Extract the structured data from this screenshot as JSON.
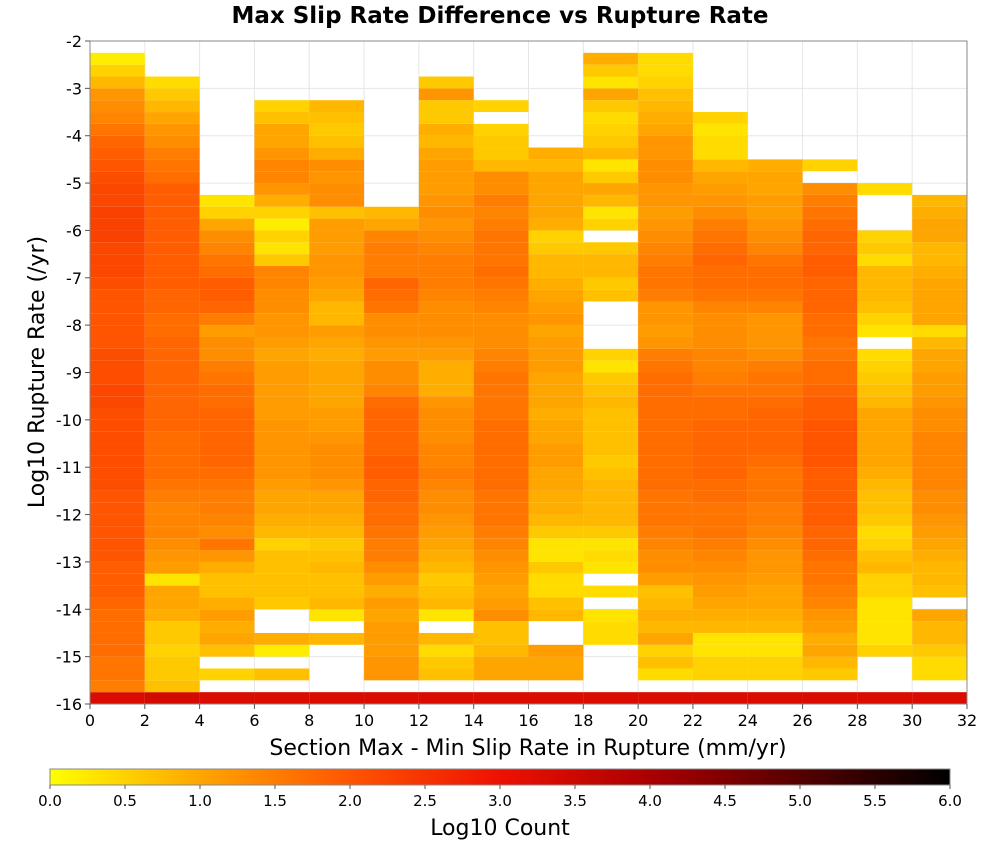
{
  "chart_data": {
    "type": "heatmap",
    "title": "Max Slip Rate Difference vs Rupture Rate",
    "xlabel": "Section Max - Min Slip Rate in Rupture (mm/yr)",
    "ylabel": "Log10 Rupture Rate (/yr)",
    "xlim": [
      0,
      32
    ],
    "ylim": [
      -16,
      -2
    ],
    "x_ticks": [
      "0",
      "2",
      "4",
      "6",
      "8",
      "10",
      "12",
      "14",
      "16",
      "18",
      "20",
      "22",
      "24",
      "26",
      "28",
      "30",
      "32"
    ],
    "y_ticks": [
      "-2",
      "-3",
      "-4",
      "-5",
      "-6",
      "-7",
      "-8",
      "-9",
      "-10",
      "-11",
      "-12",
      "-13",
      "-14",
      "-15",
      "-16"
    ],
    "bin_width_x": 2,
    "bin_height_y": 0.25,
    "y_bin_start": -16,
    "grid": true,
    "colorbar": {
      "label": "Log10 Count",
      "min": 0,
      "max": 6,
      "ticks": [
        "0.0",
        "0.5",
        "1.0",
        "1.5",
        "2.0",
        "2.5",
        "3.0",
        "3.5",
        "4.0",
        "4.5",
        "5.0",
        "5.5",
        "6.0"
      ],
      "colors": [
        "#FFFF00",
        "#FFA500",
        "#FF5500",
        "#EE1100",
        "#AA0000",
        "#550000",
        "#000000"
      ]
    },
    "columns": [
      {
        "x_start": 0,
        "base": 3.3,
        "values": [
          1.5,
          1.6,
          1.6,
          1.7,
          1.7,
          1.7,
          1.7,
          1.8,
          1.9,
          1.9,
          1.9,
          2.0,
          2.0,
          2.0,
          2.0,
          2.0,
          2.0,
          2.1,
          2.1,
          2.1,
          2.1,
          2.1,
          2.1,
          2.1,
          2.2,
          2.2,
          2.1,
          2.1,
          2.1,
          2.0,
          2.0,
          2.0,
          2.0,
          2.0,
          2.1,
          2.2,
          2.2,
          2.2,
          2.3,
          2.3,
          2.3,
          2.2,
          2.2,
          2.1,
          2.0,
          1.9,
          1.8,
          1.6,
          1.4,
          1.3,
          1.2,
          0.8,
          0.5,
          0.2
        ]
      },
      {
        "x_start": 2,
        "base": 3.4,
        "values": [
          0.7,
          0.6,
          0.6,
          0.5,
          0.6,
          0.6,
          0.9,
          1.0,
          1.0,
          0.3,
          1.1,
          1.2,
          1.3,
          1.4,
          1.4,
          1.4,
          1.5,
          1.6,
          1.7,
          1.7,
          1.7,
          1.7,
          1.8,
          1.8,
          1.8,
          1.8,
          1.8,
          1.8,
          1.8,
          1.8,
          1.7,
          1.7,
          1.8,
          1.8,
          1.9,
          1.9,
          1.9,
          1.9,
          1.9,
          1.9,
          1.9,
          1.9,
          1.9,
          1.7,
          1.6,
          1.5,
          1.3,
          1.2,
          1.0,
          0.8,
          0.6,
          0.4,
          -1,
          -1
        ]
      },
      {
        "x_start": 4,
        "base": 3.3,
        "values": [
          -1,
          0.5,
          -1,
          0.7,
          1.0,
          0.9,
          1.1,
          0.9,
          0.7,
          0.7,
          0.9,
          1.2,
          1.6,
          1.3,
          1.4,
          1.5,
          1.5,
          1.6,
          1.7,
          1.8,
          1.8,
          1.8,
          1.8,
          1.8,
          1.7,
          1.7,
          1.6,
          1.5,
          1.3,
          1.3,
          1.1,
          1.5,
          1.8,
          1.9,
          1.9,
          1.7,
          1.6,
          1.4,
          1.3,
          1.0,
          0.5,
          0.3,
          -1,
          -1,
          -1,
          -1,
          -1,
          -1,
          -1,
          -1,
          -1,
          -1,
          -1,
          -1
        ]
      },
      {
        "x_start": 6,
        "base": 3.3,
        "values": [
          -1,
          0.7,
          -1,
          0.2,
          0.9,
          -1,
          -1,
          0.6,
          0.7,
          0.7,
          0.7,
          0.7,
          0.5,
          0.8,
          0.9,
          1.0,
          1.0,
          1.1,
          1.2,
          1.2,
          1.2,
          1.2,
          1.2,
          1.1,
          1.1,
          1.1,
          1.1,
          1.1,
          1.0,
          1.1,
          1.2,
          1.2,
          1.3,
          1.3,
          1.4,
          1.4,
          0.6,
          0.3,
          0.5,
          0.2,
          0.5,
          0.9,
          1.2,
          1.4,
          1.4,
          1.2,
          1.0,
          1.0,
          0.7,
          0.5,
          -1,
          -1,
          -1,
          -1
        ]
      },
      {
        "x_start": 8,
        "base": 3.3,
        "values": [
          -1,
          -1,
          -1,
          -1,
          0.8,
          -1,
          0.3,
          0.8,
          0.7,
          0.7,
          0.8,
          0.7,
          0.6,
          0.8,
          0.9,
          1.0,
          1.0,
          1.2,
          1.3,
          1.3,
          1.3,
          1.2,
          1.1,
          1.1,
          1.0,
          1.0,
          1.0,
          1.0,
          0.9,
          1.0,
          1.1,
          0.8,
          0.8,
          1.0,
          1.1,
          1.2,
          1.2,
          1.1,
          1.1,
          1.1,
          0.7,
          1.3,
          1.3,
          1.2,
          1.3,
          0.9,
          0.7,
          0.6,
          0.7,
          0.8,
          -1,
          -1,
          -1,
          -1
        ]
      },
      {
        "x_start": 10,
        "base": 3.3,
        "values": [
          -1,
          1.2,
          1.2,
          1.1,
          1.1,
          1.1,
          1.0,
          1.1,
          0.9,
          1.1,
          1.3,
          1.5,
          1.5,
          1.6,
          1.7,
          1.7,
          1.8,
          1.8,
          1.9,
          1.9,
          1.8,
          1.8,
          1.8,
          1.8,
          1.7,
          1.4,
          1.3,
          1.3,
          1.1,
          1.2,
          1.3,
          1.3,
          1.6,
          1.7,
          1.8,
          1.5,
          1.5,
          1.5,
          1.4,
          1.0,
          0.8,
          -1,
          -1,
          -1,
          -1,
          -1,
          -1,
          -1,
          -1,
          -1,
          -1,
          -1,
          -1,
          -1
        ]
      },
      {
        "x_start": 12,
        "base": 3.3,
        "values": [
          -1,
          0.7,
          0.6,
          0.4,
          0.8,
          -1,
          0.3,
          0.8,
          0.7,
          0.6,
          0.8,
          0.9,
          1.0,
          1.1,
          1.2,
          1.3,
          1.3,
          1.4,
          1.5,
          1.4,
          1.4,
          1.3,
          1.3,
          1.3,
          1.2,
          0.9,
          0.9,
          0.9,
          1.1,
          1.2,
          1.3,
          1.3,
          1.3,
          1.4,
          1.5,
          1.5,
          1.5,
          1.4,
          1.3,
          1.2,
          1.3,
          1.2,
          1.1,
          1.1,
          1.1,
          1.0,
          0.8,
          0.9,
          0.6,
          0.6,
          1.2,
          0.6,
          -1,
          -1
        ]
      },
      {
        "x_start": 14,
        "base": 3.3,
        "values": [
          -1,
          1.0,
          1.0,
          0.8,
          0.7,
          0.7,
          1.3,
          1.1,
          1.0,
          1.1,
          1.2,
          1.3,
          1.4,
          1.5,
          1.6,
          1.6,
          1.6,
          1.7,
          1.7,
          1.7,
          1.7,
          1.7,
          1.7,
          1.6,
          1.6,
          1.6,
          1.6,
          1.5,
          1.4,
          1.3,
          1.3,
          1.3,
          1.4,
          1.5,
          1.6,
          1.7,
          1.6,
          1.6,
          1.6,
          1.5,
          1.4,
          1.5,
          1.3,
          1.3,
          0.8,
          0.6,
          0.6,
          0.5,
          -1,
          0.5,
          -1,
          -1,
          -1,
          -1
        ]
      },
      {
        "x_start": 16,
        "base": 3.3,
        "values": [
          -1,
          1.0,
          1.0,
          1.1,
          -1,
          -1,
          0.8,
          0.7,
          0.4,
          0.4,
          0.6,
          0.3,
          0.3,
          0.6,
          0.8,
          0.9,
          0.9,
          1.0,
          1.0,
          1.1,
          1.1,
          1.0,
          1.0,
          0.9,
          1.0,
          1.0,
          1.0,
          1.1,
          1.1,
          1.1,
          1.0,
          1.2,
          1.1,
          1.0,
          0.9,
          0.8,
          0.8,
          0.6,
          0.5,
          0.9,
          1.0,
          1.0,
          1.0,
          1.0,
          0.8,
          0.9,
          -1,
          -1,
          -1,
          -1,
          -1,
          -1,
          -1,
          -1
        ]
      },
      {
        "x_start": 18,
        "base": 3.3,
        "values": [
          -1,
          -1,
          -1,
          -1,
          0.4,
          0.4,
          0.3,
          -1,
          0.4,
          -1,
          0.3,
          0.4,
          0.3,
          0.6,
          0.8,
          0.8,
          0.8,
          0.8,
          0.7,
          0.6,
          0.7,
          0.7,
          0.7,
          0.7,
          0.8,
          0.7,
          0.6,
          0.3,
          0.5,
          -1,
          -1,
          -1,
          -1,
          0.7,
          0.6,
          0.8,
          0.8,
          0.6,
          -1,
          0.5,
          0.3,
          0.8,
          1.0,
          0.6,
          0.3,
          0.8,
          0.6,
          0.5,
          0.4,
          0.6,
          1.0,
          0.3,
          0.6,
          0.9
        ]
      },
      {
        "x_start": 20,
        "base": 3.3,
        "values": [
          -1,
          0.4,
          0.7,
          0.5,
          1.0,
          0.8,
          0.9,
          0.8,
          0.7,
          1.1,
          1.3,
          1.3,
          1.4,
          1.5,
          1.6,
          1.6,
          1.6,
          1.7,
          1.7,
          1.7,
          1.7,
          1.7,
          1.7,
          1.7,
          1.7,
          1.7,
          1.7,
          1.6,
          1.5,
          1.2,
          1.1,
          1.2,
          1.2,
          1.5,
          1.6,
          1.6,
          1.5,
          1.4,
          1.3,
          1.2,
          1.1,
          1.2,
          1.2,
          1.3,
          1.3,
          1.2,
          1.2,
          1.0,
          0.9,
          0.8,
          0.7,
          0.5,
          0.4,
          0.4
        ]
      },
      {
        "x_start": 22,
        "base": 3.3,
        "values": [
          -1,
          0.5,
          0.5,
          0.3,
          0.3,
          0.8,
          0.9,
          1.0,
          1.1,
          1.2,
          1.3,
          1.4,
          1.5,
          1.6,
          1.6,
          1.6,
          1.7,
          1.7,
          1.8,
          1.8,
          1.8,
          1.8,
          1.8,
          1.7,
          1.7,
          1.6,
          1.5,
          1.4,
          1.4,
          1.3,
          1.3,
          1.3,
          1.4,
          1.6,
          1.7,
          1.7,
          1.8,
          1.7,
          1.6,
          1.5,
          1.3,
          1.2,
          1.1,
          1.0,
          0.8,
          0.4,
          0.4,
          0.3,
          0.5,
          -1,
          -1,
          -1,
          -1,
          -1
        ]
      },
      {
        "x_start": 24,
        "base": 3.3,
        "values": [
          -1,
          0.5,
          0.5,
          0.3,
          0.3,
          0.8,
          0.9,
          1.0,
          1.0,
          1.1,
          1.2,
          1.2,
          1.3,
          1.4,
          1.5,
          1.5,
          1.6,
          1.6,
          1.6,
          1.7,
          1.8,
          1.8,
          1.8,
          1.8,
          1.7,
          1.6,
          1.6,
          1.5,
          1.3,
          1.2,
          1.2,
          1.2,
          1.4,
          1.6,
          1.7,
          1.7,
          1.6,
          1.4,
          1.3,
          1.2,
          1.1,
          1.1,
          1.0,
          1.0,
          0.9,
          -1,
          -1,
          -1,
          -1,
          -1,
          -1,
          -1,
          -1,
          -1
        ]
      },
      {
        "x_start": 26,
        "base": 3.3,
        "values": [
          -1,
          0.6,
          0.8,
          1.0,
          0.9,
          1.1,
          1.2,
          1.4,
          1.5,
          1.6,
          1.6,
          1.7,
          1.8,
          1.8,
          1.9,
          1.9,
          1.9,
          1.9,
          1.9,
          2.0,
          2.0,
          2.0,
          2.0,
          1.9,
          1.9,
          1.8,
          1.7,
          1.7,
          1.6,
          1.6,
          1.7,
          1.7,
          1.8,
          1.8,
          1.8,
          1.9,
          1.9,
          1.8,
          1.8,
          1.7,
          1.6,
          1.5,
          1.3,
          -1,
          0.5,
          -1,
          -1,
          -1,
          -1,
          -1,
          -1,
          -1,
          -1,
          -1
        ]
      },
      {
        "x_start": 28,
        "base": 3.3,
        "values": [
          -1,
          -1,
          -1,
          0.5,
          0.3,
          0.3,
          0.3,
          0.3,
          0.5,
          0.5,
          0.8,
          0.7,
          0.5,
          0.4,
          0.6,
          0.7,
          0.7,
          0.8,
          0.9,
          1.0,
          1.0,
          1.0,
          1.0,
          1.0,
          0.8,
          0.7,
          0.6,
          0.5,
          0.4,
          -1,
          0.3,
          0.5,
          0.7,
          0.8,
          0.8,
          0.8,
          0.4,
          0.6,
          0.5,
          -1,
          -1,
          -1,
          0.4,
          -1,
          -1,
          -1,
          -1,
          -1,
          -1,
          -1,
          -1,
          -1,
          -1,
          -1
        ]
      },
      {
        "x_start": 30,
        "base": 3.3,
        "values": [
          -1,
          0.4,
          0.4,
          0.6,
          0.8,
          0.8,
          1.0,
          -1,
          0.7,
          0.8,
          0.8,
          0.9,
          1.0,
          1.1,
          1.2,
          1.3,
          1.3,
          1.4,
          1.4,
          1.4,
          1.4,
          1.4,
          1.3,
          1.3,
          1.2,
          1.1,
          1.1,
          1.0,
          1.0,
          0.8,
          0.4,
          1.0,
          1.0,
          1.0,
          1.0,
          0.9,
          0.8,
          0.8,
          1.0,
          1.0,
          0.9,
          0.8,
          -1,
          -1,
          -1,
          -1,
          -1,
          -1,
          -1,
          -1,
          -1,
          -1,
          -1,
          -1
        ]
      }
    ]
  }
}
